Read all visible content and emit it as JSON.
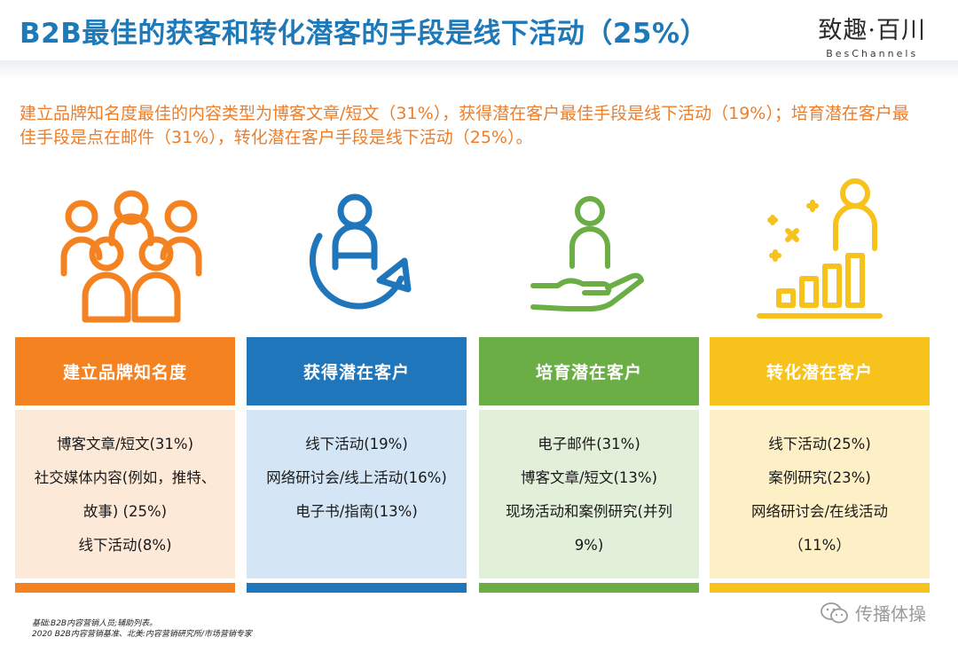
{
  "header": {
    "title": "B2B最佳的获客和转化潜客的手段是线下活动（25%）",
    "brand_name": "致趣·百川",
    "brand_sub": "BesChannels"
  },
  "summary": "建立品牌知名度最佳的内容类型为博客文章/短文（31%），获得潜在客户最佳手段是线下活动（19%）；培育潜在客户最佳手段是点在邮件（31%），转化潜在客户手段是线下活动（25%）。",
  "columns": [
    {
      "title": "建立品牌知名度",
      "icon": "people-group-icon",
      "color": "#f58220",
      "items": [
        "博客文章/短文(31%)",
        "社交媒体内容(例如，推特、",
        "故事) (25%)",
        "线下活动(8%)"
      ]
    },
    {
      "title": "获得潜在客户",
      "icon": "person-cycle-icon",
      "color": "#1f76bb",
      "items": [
        "线下活动(19%)",
        "网络研讨会/线上活动(16%)",
        "电子书/指南(13%)"
      ]
    },
    {
      "title": "培育潜在客户",
      "icon": "hand-person-icon",
      "color": "#6bae46",
      "items": [
        "电子邮件(31%)",
        "博客文章/短文(13%)",
        "现场活动和案例研究(并列",
        "9%)"
      ]
    },
    {
      "title": "转化潜在客户",
      "icon": "person-growth-icon",
      "color": "#f7c21b",
      "items": [
        "线下活动(25%)",
        "案例研究(23%)",
        "网络研讨会/在线活动",
        "（11%）"
      ]
    }
  ],
  "footnote": {
    "line1": "基础:B2B内容营销人员;辅助列表。",
    "line2": "2020 B2B内容营销基准、北美:内容营销研究所/市场营销专家"
  },
  "watermark": {
    "text": "传播体操",
    "icon": "wechat-icon"
  }
}
